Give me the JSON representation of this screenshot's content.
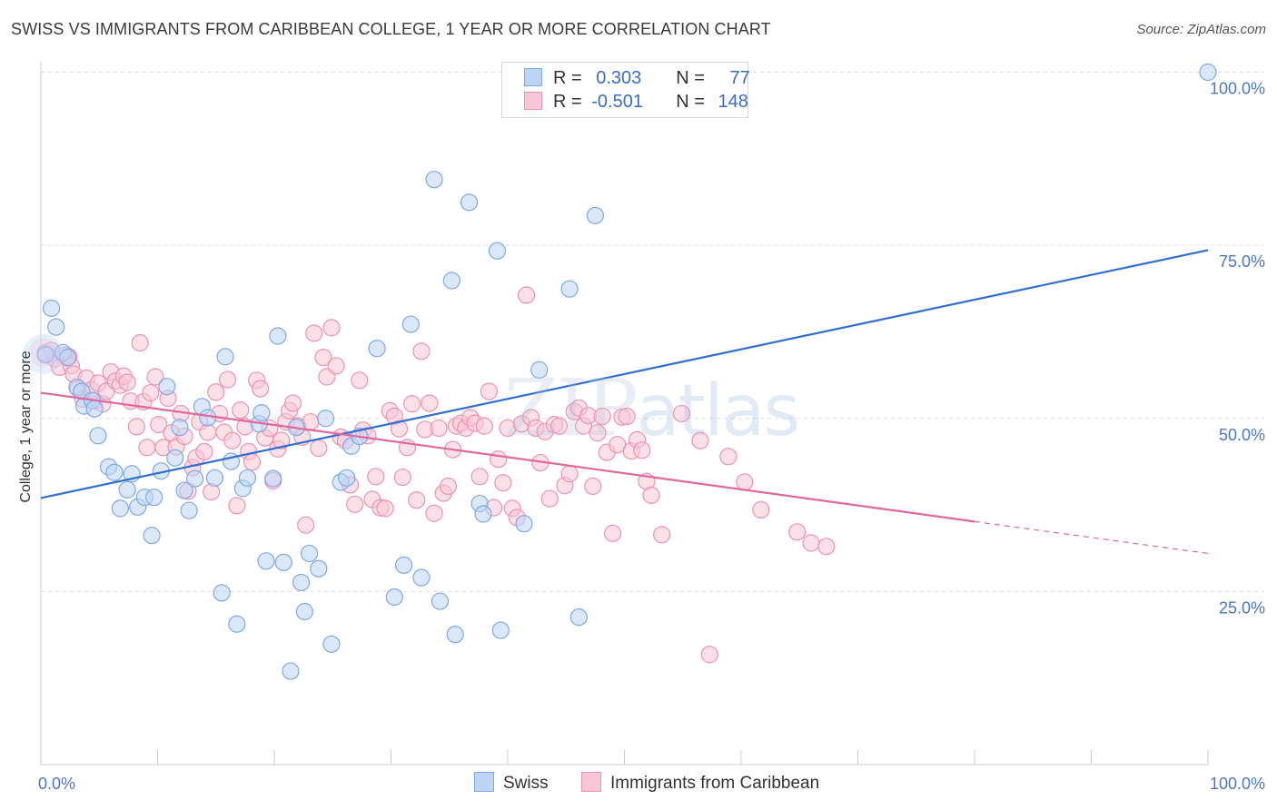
{
  "header": {
    "title": "SWISS VS IMMIGRANTS FROM CARIBBEAN COLLEGE, 1 YEAR OR MORE CORRELATION CHART",
    "source": "Source: ZipAtlas.com"
  },
  "watermark": {
    "zip": "ZIP",
    "atlas": "atlas"
  },
  "legend": {
    "r_label": "R =",
    "n_label": "N =",
    "swiss": {
      "r": "0.303",
      "n": "77"
    },
    "caribbean": {
      "r": "-0.501",
      "n": "148"
    }
  },
  "colors": {
    "swiss_fill": "#bcd5f5",
    "swiss_stroke": "#7fa9e6",
    "swiss_line": "#2f6fd0",
    "carib_fill": "#f8c6d6",
    "carib_stroke": "#ee93b1",
    "carib_line": "#e0689a",
    "axis_text": "#4a78c2",
    "grid": "#dddddd"
  },
  "chart_data": {
    "type": "scatter",
    "title": "SWISS VS IMMIGRANTS FROM CARIBBEAN COLLEGE, 1 YEAR OR MORE CORRELATION CHART",
    "xlabel": "",
    "ylabel": "College, 1 year or more",
    "xlim": [
      0,
      100
    ],
    "ylim": [
      0,
      105
    ],
    "x_tick_labels": [
      "0.0%",
      "100.0%"
    ],
    "y_ticks": [
      25,
      50,
      75,
      100
    ],
    "y_tick_labels": [
      "25.0%",
      "50.0%",
      "75.0%",
      "100.0%"
    ],
    "grid": "horizontal dashed",
    "legend_position": "top-center",
    "series": [
      {
        "name": "Swiss",
        "trend": {
          "x": [
            0,
            100
          ],
          "y": [
            38.5,
            74.3
          ]
        },
        "points": [
          [
            0.4,
            59.2
          ],
          [
            0.9,
            65.9
          ],
          [
            1.3,
            63.2
          ],
          [
            1.9,
            59.5
          ],
          [
            2.3,
            58.8
          ],
          [
            3.1,
            54.5
          ],
          [
            3.5,
            53.9
          ],
          [
            3.7,
            51.8
          ],
          [
            4.4,
            52.6
          ],
          [
            4.6,
            51.4
          ],
          [
            4.9,
            47.5
          ],
          [
            5.8,
            43.0
          ],
          [
            6.3,
            42.2
          ],
          [
            6.8,
            37.0
          ],
          [
            7.4,
            39.7
          ],
          [
            7.8,
            42.0
          ],
          [
            8.3,
            37.2
          ],
          [
            8.9,
            38.6
          ],
          [
            9.5,
            33.1
          ],
          [
            9.7,
            38.6
          ],
          [
            10.3,
            42.4
          ],
          [
            10.8,
            54.6
          ],
          [
            11.5,
            44.3
          ],
          [
            11.9,
            48.7
          ],
          [
            12.3,
            39.6
          ],
          [
            12.7,
            36.7
          ],
          [
            13.2,
            41.3
          ],
          [
            13.8,
            51.7
          ],
          [
            14.3,
            50.1
          ],
          [
            14.9,
            41.4
          ],
          [
            15.5,
            24.8
          ],
          [
            15.8,
            58.9
          ],
          [
            16.3,
            43.8
          ],
          [
            16.8,
            20.3
          ],
          [
            17.3,
            39.9
          ],
          [
            17.7,
            41.4
          ],
          [
            18.7,
            49.2
          ],
          [
            18.9,
            50.8
          ],
          [
            19.3,
            29.4
          ],
          [
            19.9,
            41.3
          ],
          [
            20.3,
            61.9
          ],
          [
            20.8,
            29.2
          ],
          [
            21.4,
            13.5
          ],
          [
            21.9,
            48.7
          ],
          [
            22.3,
            26.3
          ],
          [
            22.6,
            22.1
          ],
          [
            23.0,
            30.5
          ],
          [
            23.8,
            28.3
          ],
          [
            24.4,
            50.0
          ],
          [
            24.9,
            17.4
          ],
          [
            25.7,
            40.8
          ],
          [
            26.2,
            41.4
          ],
          [
            26.6,
            46.0
          ],
          [
            27.3,
            47.4
          ],
          [
            28.8,
            60.1
          ],
          [
            30.3,
            24.2
          ],
          [
            31.1,
            28.8
          ],
          [
            31.7,
            63.6
          ],
          [
            32.6,
            27.0
          ],
          [
            33.7,
            84.5
          ],
          [
            34.2,
            23.6
          ],
          [
            35.2,
            69.9
          ],
          [
            35.5,
            18.8
          ],
          [
            36.7,
            81.2
          ],
          [
            37.6,
            37.7
          ],
          [
            37.9,
            36.2
          ],
          [
            39.1,
            74.2
          ],
          [
            39.4,
            19.4
          ],
          [
            41.4,
            34.8
          ],
          [
            42.7,
            57.0
          ],
          [
            45.3,
            68.7
          ],
          [
            46.1,
            21.3
          ],
          [
            47.5,
            79.3
          ],
          [
            100.0,
            100.0
          ]
        ]
      },
      {
        "name": "Immigrants from Caribbean",
        "trend": {
          "x": [
            0,
            80
          ],
          "y": [
            53.7,
            35.1
          ]
        },
        "trend_dashed": {
          "x": [
            80,
            100
          ],
          "y": [
            35.1,
            30.5
          ]
        },
        "points": [
          [
            0.4,
            59.5
          ],
          [
            0.9,
            59.8
          ],
          [
            1.2,
            58.6
          ],
          [
            1.6,
            57.4
          ],
          [
            2.1,
            59.1
          ],
          [
            2.4,
            58.9
          ],
          [
            2.6,
            57.6
          ],
          [
            2.8,
            56.4
          ],
          [
            3.2,
            54.3
          ],
          [
            3.6,
            52.8
          ],
          [
            3.9,
            55.8
          ],
          [
            4.3,
            54.1
          ],
          [
            4.6,
            52.5
          ],
          [
            4.9,
            55.1
          ],
          [
            5.3,
            52.1
          ],
          [
            5.6,
            53.9
          ],
          [
            6.0,
            56.7
          ],
          [
            6.4,
            55.4
          ],
          [
            6.8,
            54.8
          ],
          [
            7.1,
            56.1
          ],
          [
            7.4,
            55.2
          ],
          [
            7.7,
            52.5
          ],
          [
            8.2,
            48.8
          ],
          [
            8.5,
            60.9
          ],
          [
            8.8,
            52.4
          ],
          [
            9.1,
            45.8
          ],
          [
            9.4,
            53.7
          ],
          [
            9.8,
            56.0
          ],
          [
            10.1,
            49.1
          ],
          [
            10.5,
            45.8
          ],
          [
            10.9,
            52.9
          ],
          [
            11.2,
            47.9
          ],
          [
            11.6,
            45.9
          ],
          [
            12.0,
            50.7
          ],
          [
            12.3,
            47.4
          ],
          [
            12.6,
            39.5
          ],
          [
            13.0,
            42.9
          ],
          [
            13.3,
            44.3
          ],
          [
            13.6,
            49.5
          ],
          [
            14.0,
            45.2
          ],
          [
            14.3,
            48.0
          ],
          [
            14.6,
            39.4
          ],
          [
            15.0,
            53.8
          ],
          [
            15.3,
            50.7
          ],
          [
            15.7,
            48.0
          ],
          [
            16.0,
            55.6
          ],
          [
            16.4,
            46.8
          ],
          [
            16.8,
            37.4
          ],
          [
            17.1,
            51.2
          ],
          [
            17.5,
            48.8
          ],
          [
            17.8,
            45.2
          ],
          [
            18.1,
            43.7
          ],
          [
            18.5,
            55.5
          ],
          [
            18.8,
            54.3
          ],
          [
            19.2,
            47.2
          ],
          [
            19.6,
            48.6
          ],
          [
            19.9,
            41.0
          ],
          [
            20.3,
            45.6
          ],
          [
            20.6,
            46.8
          ],
          [
            21.0,
            49.5
          ],
          [
            21.3,
            51.1
          ],
          [
            21.6,
            52.2
          ],
          [
            22.0,
            48.9
          ],
          [
            22.4,
            47.3
          ],
          [
            22.7,
            34.6
          ],
          [
            23.1,
            49.5
          ],
          [
            23.4,
            62.3
          ],
          [
            23.8,
            45.7
          ],
          [
            24.2,
            58.8
          ],
          [
            24.5,
            56.0
          ],
          [
            24.9,
            63.1
          ],
          [
            25.3,
            57.6
          ],
          [
            25.7,
            47.3
          ],
          [
            26.1,
            46.8
          ],
          [
            26.5,
            40.4
          ],
          [
            26.9,
            37.6
          ],
          [
            27.3,
            55.5
          ],
          [
            27.6,
            48.3
          ],
          [
            28.0,
            47.5
          ],
          [
            28.4,
            38.3
          ],
          [
            28.7,
            41.6
          ],
          [
            29.1,
            37.1
          ],
          [
            29.5,
            37.0
          ],
          [
            29.9,
            51.1
          ],
          [
            30.3,
            50.3
          ],
          [
            30.7,
            48.5
          ],
          [
            31.0,
            41.5
          ],
          [
            31.4,
            45.8
          ],
          [
            31.8,
            52.1
          ],
          [
            32.2,
            38.2
          ],
          [
            32.6,
            59.7
          ],
          [
            32.9,
            48.4
          ],
          [
            33.3,
            52.2
          ],
          [
            33.7,
            36.3
          ],
          [
            34.1,
            48.6
          ],
          [
            34.5,
            39.2
          ],
          [
            34.9,
            40.2
          ],
          [
            35.3,
            45.5
          ],
          [
            35.6,
            48.9
          ],
          [
            36.0,
            49.3
          ],
          [
            36.4,
            48.6
          ],
          [
            36.8,
            50.1
          ],
          [
            37.2,
            49.3
          ],
          [
            37.6,
            41.6
          ],
          [
            38.0,
            48.9
          ],
          [
            38.4,
            53.9
          ],
          [
            38.8,
            37.1
          ],
          [
            39.2,
            44.1
          ],
          [
            39.6,
            40.7
          ],
          [
            40.0,
            48.6
          ],
          [
            40.4,
            37.0
          ],
          [
            40.8,
            35.7
          ],
          [
            41.2,
            49.2
          ],
          [
            41.6,
            67.8
          ],
          [
            42.0,
            50.1
          ],
          [
            42.4,
            48.6
          ],
          [
            42.8,
            43.6
          ],
          [
            43.2,
            48.1
          ],
          [
            43.6,
            38.4
          ],
          [
            44.0,
            49.1
          ],
          [
            44.4,
            48.9
          ],
          [
            44.9,
            40.3
          ],
          [
            45.3,
            42.0
          ],
          [
            45.7,
            51.0
          ],
          [
            46.1,
            51.5
          ],
          [
            46.5,
            48.9
          ],
          [
            46.9,
            50.4
          ],
          [
            47.3,
            40.2
          ],
          [
            47.7,
            47.9
          ],
          [
            48.1,
            50.3
          ],
          [
            48.5,
            45.1
          ],
          [
            49.0,
            33.4
          ],
          [
            49.4,
            46.2
          ],
          [
            49.8,
            50.2
          ],
          [
            50.2,
            50.3
          ],
          [
            50.6,
            45.3
          ],
          [
            51.1,
            46.9
          ],
          [
            51.5,
            45.4
          ],
          [
            51.9,
            40.9
          ],
          [
            52.3,
            38.9
          ],
          [
            53.2,
            33.2
          ],
          [
            54.9,
            50.7
          ],
          [
            56.5,
            46.8
          ],
          [
            57.3,
            15.9
          ],
          [
            58.9,
            44.5
          ],
          [
            60.3,
            40.8
          ],
          [
            61.7,
            36.8
          ],
          [
            64.8,
            33.6
          ],
          [
            66.0,
            32.0
          ],
          [
            67.3,
            31.5
          ]
        ]
      }
    ]
  },
  "bottom_legend": {
    "swiss": "Swiss",
    "caribbean": "Immigrants from Caribbean"
  }
}
